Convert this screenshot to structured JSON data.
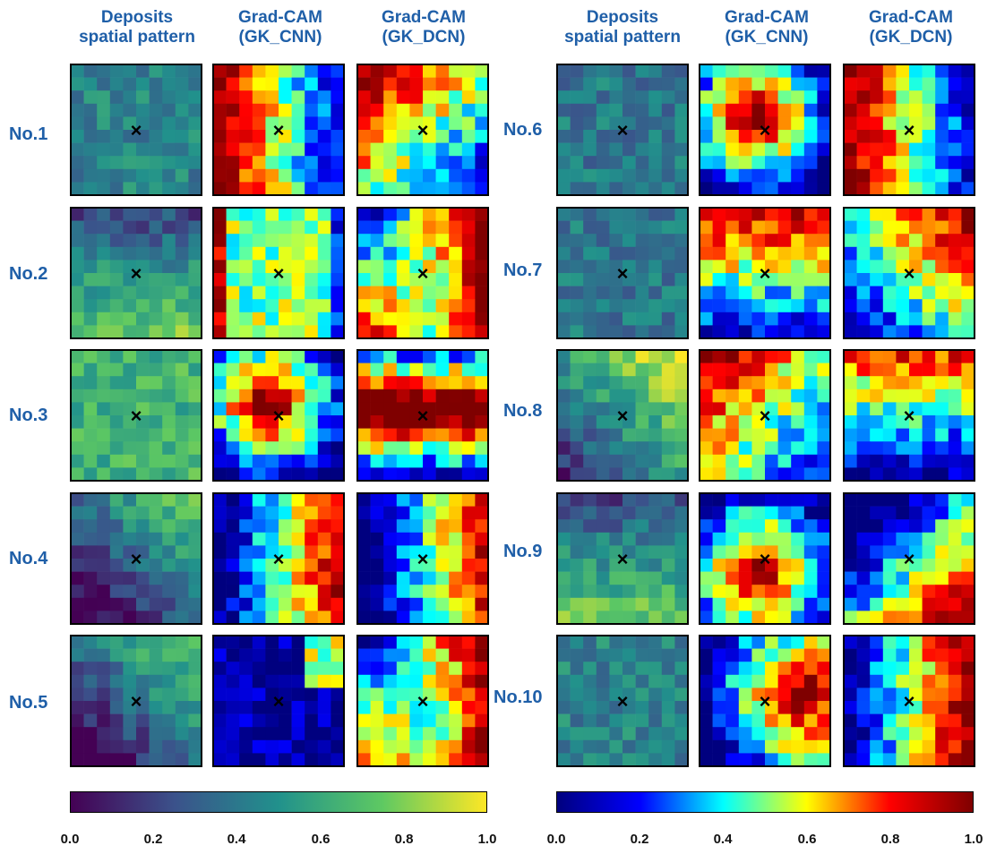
{
  "headers": {
    "left": [
      {
        "line1": "Deposits",
        "line2": "spatial pattern"
      },
      {
        "line1": "Grad-CAM",
        "line2": "(GK_CNN)"
      },
      {
        "line1": "Grad-CAM",
        "line2": "(GK_DCN)"
      }
    ],
    "right": [
      {
        "line1": "Deposits",
        "line2": "spatial pattern"
      },
      {
        "line1": "Grad-CAM",
        "line2": "(GK_CNN)"
      },
      {
        "line1": "Grad-CAM",
        "line2": "(GK_DCN)"
      }
    ]
  },
  "row_labels": {
    "left": [
      "No.1",
      "No.2",
      "No.3",
      "No.4",
      "No.5"
    ],
    "right": [
      "No.6",
      "No.7",
      "No.8",
      "No.9",
      "No.10"
    ]
  },
  "marker_symbol": "×",
  "colors": {
    "label_blue": "#1f5fa8",
    "viridis": [
      "#440154",
      "#3b528b",
      "#21918c",
      "#5ec962",
      "#fde725"
    ],
    "jet": [
      "#00007f",
      "#0000ff",
      "#00ffff",
      "#ffff00",
      "#ff0000",
      "#7f0000"
    ]
  },
  "colorbars": [
    {
      "name": "viridis",
      "ticks": [
        "0.0",
        "0.2",
        "0.4",
        "0.6",
        "0.8",
        "1.0"
      ]
    },
    {
      "name": "jet",
      "ticks": [
        "0.0",
        "0.2",
        "0.4",
        "0.6",
        "0.8",
        "1.0"
      ]
    }
  ],
  "chart_data": {
    "type": "heatmap",
    "grid_size": 10,
    "value_range": [
      0,
      1
    ],
    "panels": [
      {
        "sample": "No.1",
        "column": "Deposits spatial pattern",
        "colormap": "viridis",
        "pattern": "uniform-mid",
        "level": 0.45
      },
      {
        "sample": "No.1",
        "column": "Grad-CAM (GK_CNN)",
        "colormap": "jet",
        "pattern": "high-left-low-right",
        "level": 0.55
      },
      {
        "sample": "No.1",
        "column": "Grad-CAM (GK_DCN)",
        "colormap": "jet",
        "pattern": "high-top-left",
        "level": 0.55
      },
      {
        "sample": "No.2",
        "column": "Deposits spatial pattern",
        "colormap": "viridis",
        "pattern": "increasing-downward",
        "level": 0.5
      },
      {
        "sample": "No.2",
        "column": "Grad-CAM (GK_CNN)",
        "colormap": "jet",
        "pattern": "high-left-edge",
        "level": 0.5
      },
      {
        "sample": "No.2",
        "column": "Grad-CAM (GK_DCN)",
        "colormap": "jet",
        "pattern": "high-right-and-bottom-left",
        "level": 0.55
      },
      {
        "sample": "No.3",
        "column": "Deposits spatial pattern",
        "colormap": "viridis",
        "pattern": "uniform-high",
        "level": 0.65
      },
      {
        "sample": "No.3",
        "column": "Grad-CAM (GK_CNN)",
        "colormap": "jet",
        "pattern": "high-center-blob",
        "level": 0.5
      },
      {
        "sample": "No.3",
        "column": "Grad-CAM (GK_DCN)",
        "colormap": "jet",
        "pattern": "high-center-band",
        "level": 0.7
      },
      {
        "sample": "No.4",
        "column": "Deposits spatial pattern",
        "colormap": "viridis",
        "pattern": "high-top-right",
        "level": 0.35
      },
      {
        "sample": "No.4",
        "column": "Grad-CAM (GK_CNN)",
        "colormap": "jet",
        "pattern": "high-right",
        "level": 0.5
      },
      {
        "sample": "No.4",
        "column": "Grad-CAM (GK_DCN)",
        "colormap": "jet",
        "pattern": "high-right",
        "level": 0.45
      },
      {
        "sample": "No.5",
        "column": "Deposits spatial pattern",
        "colormap": "viridis",
        "pattern": "high-top-right",
        "level": 0.35
      },
      {
        "sample": "No.5",
        "column": "Grad-CAM (GK_CNN)",
        "colormap": "jet",
        "pattern": "low-mostly",
        "level": 0.2
      },
      {
        "sample": "No.5",
        "column": "Grad-CAM (GK_DCN)",
        "colormap": "jet",
        "pattern": "high-right-and-bottom-left",
        "level": 0.5
      },
      {
        "sample": "No.6",
        "column": "Deposits spatial pattern",
        "colormap": "viridis",
        "pattern": "uniform-mid",
        "level": 0.4
      },
      {
        "sample": "No.6",
        "column": "Grad-CAM (GK_CNN)",
        "colormap": "jet",
        "pattern": "high-center-blob",
        "level": 0.5
      },
      {
        "sample": "No.6",
        "column": "Grad-CAM (GK_DCN)",
        "colormap": "jet",
        "pattern": "high-left-low-right",
        "level": 0.55
      },
      {
        "sample": "No.7",
        "column": "Deposits spatial pattern",
        "colormap": "viridis",
        "pattern": "uniform-mid",
        "level": 0.4
      },
      {
        "sample": "No.7",
        "column": "Grad-CAM (GK_CNN)",
        "colormap": "jet",
        "pattern": "high-top",
        "level": 0.6
      },
      {
        "sample": "No.7",
        "column": "Grad-CAM (GK_DCN)",
        "colormap": "jet",
        "pattern": "high-top-right",
        "level": 0.5
      },
      {
        "sample": "No.8",
        "column": "Deposits spatial pattern",
        "colormap": "viridis",
        "pattern": "high-top-right",
        "level": 0.55
      },
      {
        "sample": "No.8",
        "column": "Grad-CAM (GK_CNN)",
        "colormap": "jet",
        "pattern": "high-top-left",
        "level": 0.55
      },
      {
        "sample": "No.8",
        "column": "Grad-CAM (GK_DCN)",
        "colormap": "jet",
        "pattern": "high-top",
        "level": 0.5
      },
      {
        "sample": "No.9",
        "column": "Deposits spatial pattern",
        "colormap": "viridis",
        "pattern": "increasing-downward",
        "level": 0.5
      },
      {
        "sample": "No.9",
        "column": "Grad-CAM (GK_CNN)",
        "colormap": "jet",
        "pattern": "high-center-bottom",
        "level": 0.5
      },
      {
        "sample": "No.9",
        "column": "Grad-CAM (GK_DCN)",
        "colormap": "jet",
        "pattern": "high-bottom-right",
        "level": 0.45
      },
      {
        "sample": "No.10",
        "column": "Deposits spatial pattern",
        "colormap": "viridis",
        "pattern": "uniform-mid",
        "level": 0.45
      },
      {
        "sample": "No.10",
        "column": "Grad-CAM (GK_CNN)",
        "colormap": "jet",
        "pattern": "high-right-center",
        "level": 0.6
      },
      {
        "sample": "No.10",
        "column": "Grad-CAM (GK_DCN)",
        "colormap": "jet",
        "pattern": "high-right",
        "level": 0.55
      }
    ]
  }
}
